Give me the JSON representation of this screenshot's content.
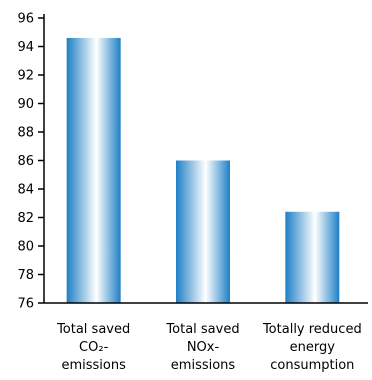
{
  "chart_data": {
    "type": "bar",
    "categories": [
      [
        "Total saved",
        "CO₂-",
        "emissions"
      ],
      [
        "Total saved",
        "NOx-",
        "emissions"
      ],
      [
        "Totally reduced",
        "energy",
        "consumption"
      ]
    ],
    "values": [
      94.6,
      86.0,
      82.4
    ],
    "ylim": [
      76,
      96
    ],
    "yticks": [
      76,
      78,
      80,
      82,
      84,
      86,
      88,
      90,
      92,
      94,
      96
    ],
    "grid": false,
    "bar_colors": {
      "edge": "#1e7fc6",
      "center": "#ffffff"
    }
  }
}
